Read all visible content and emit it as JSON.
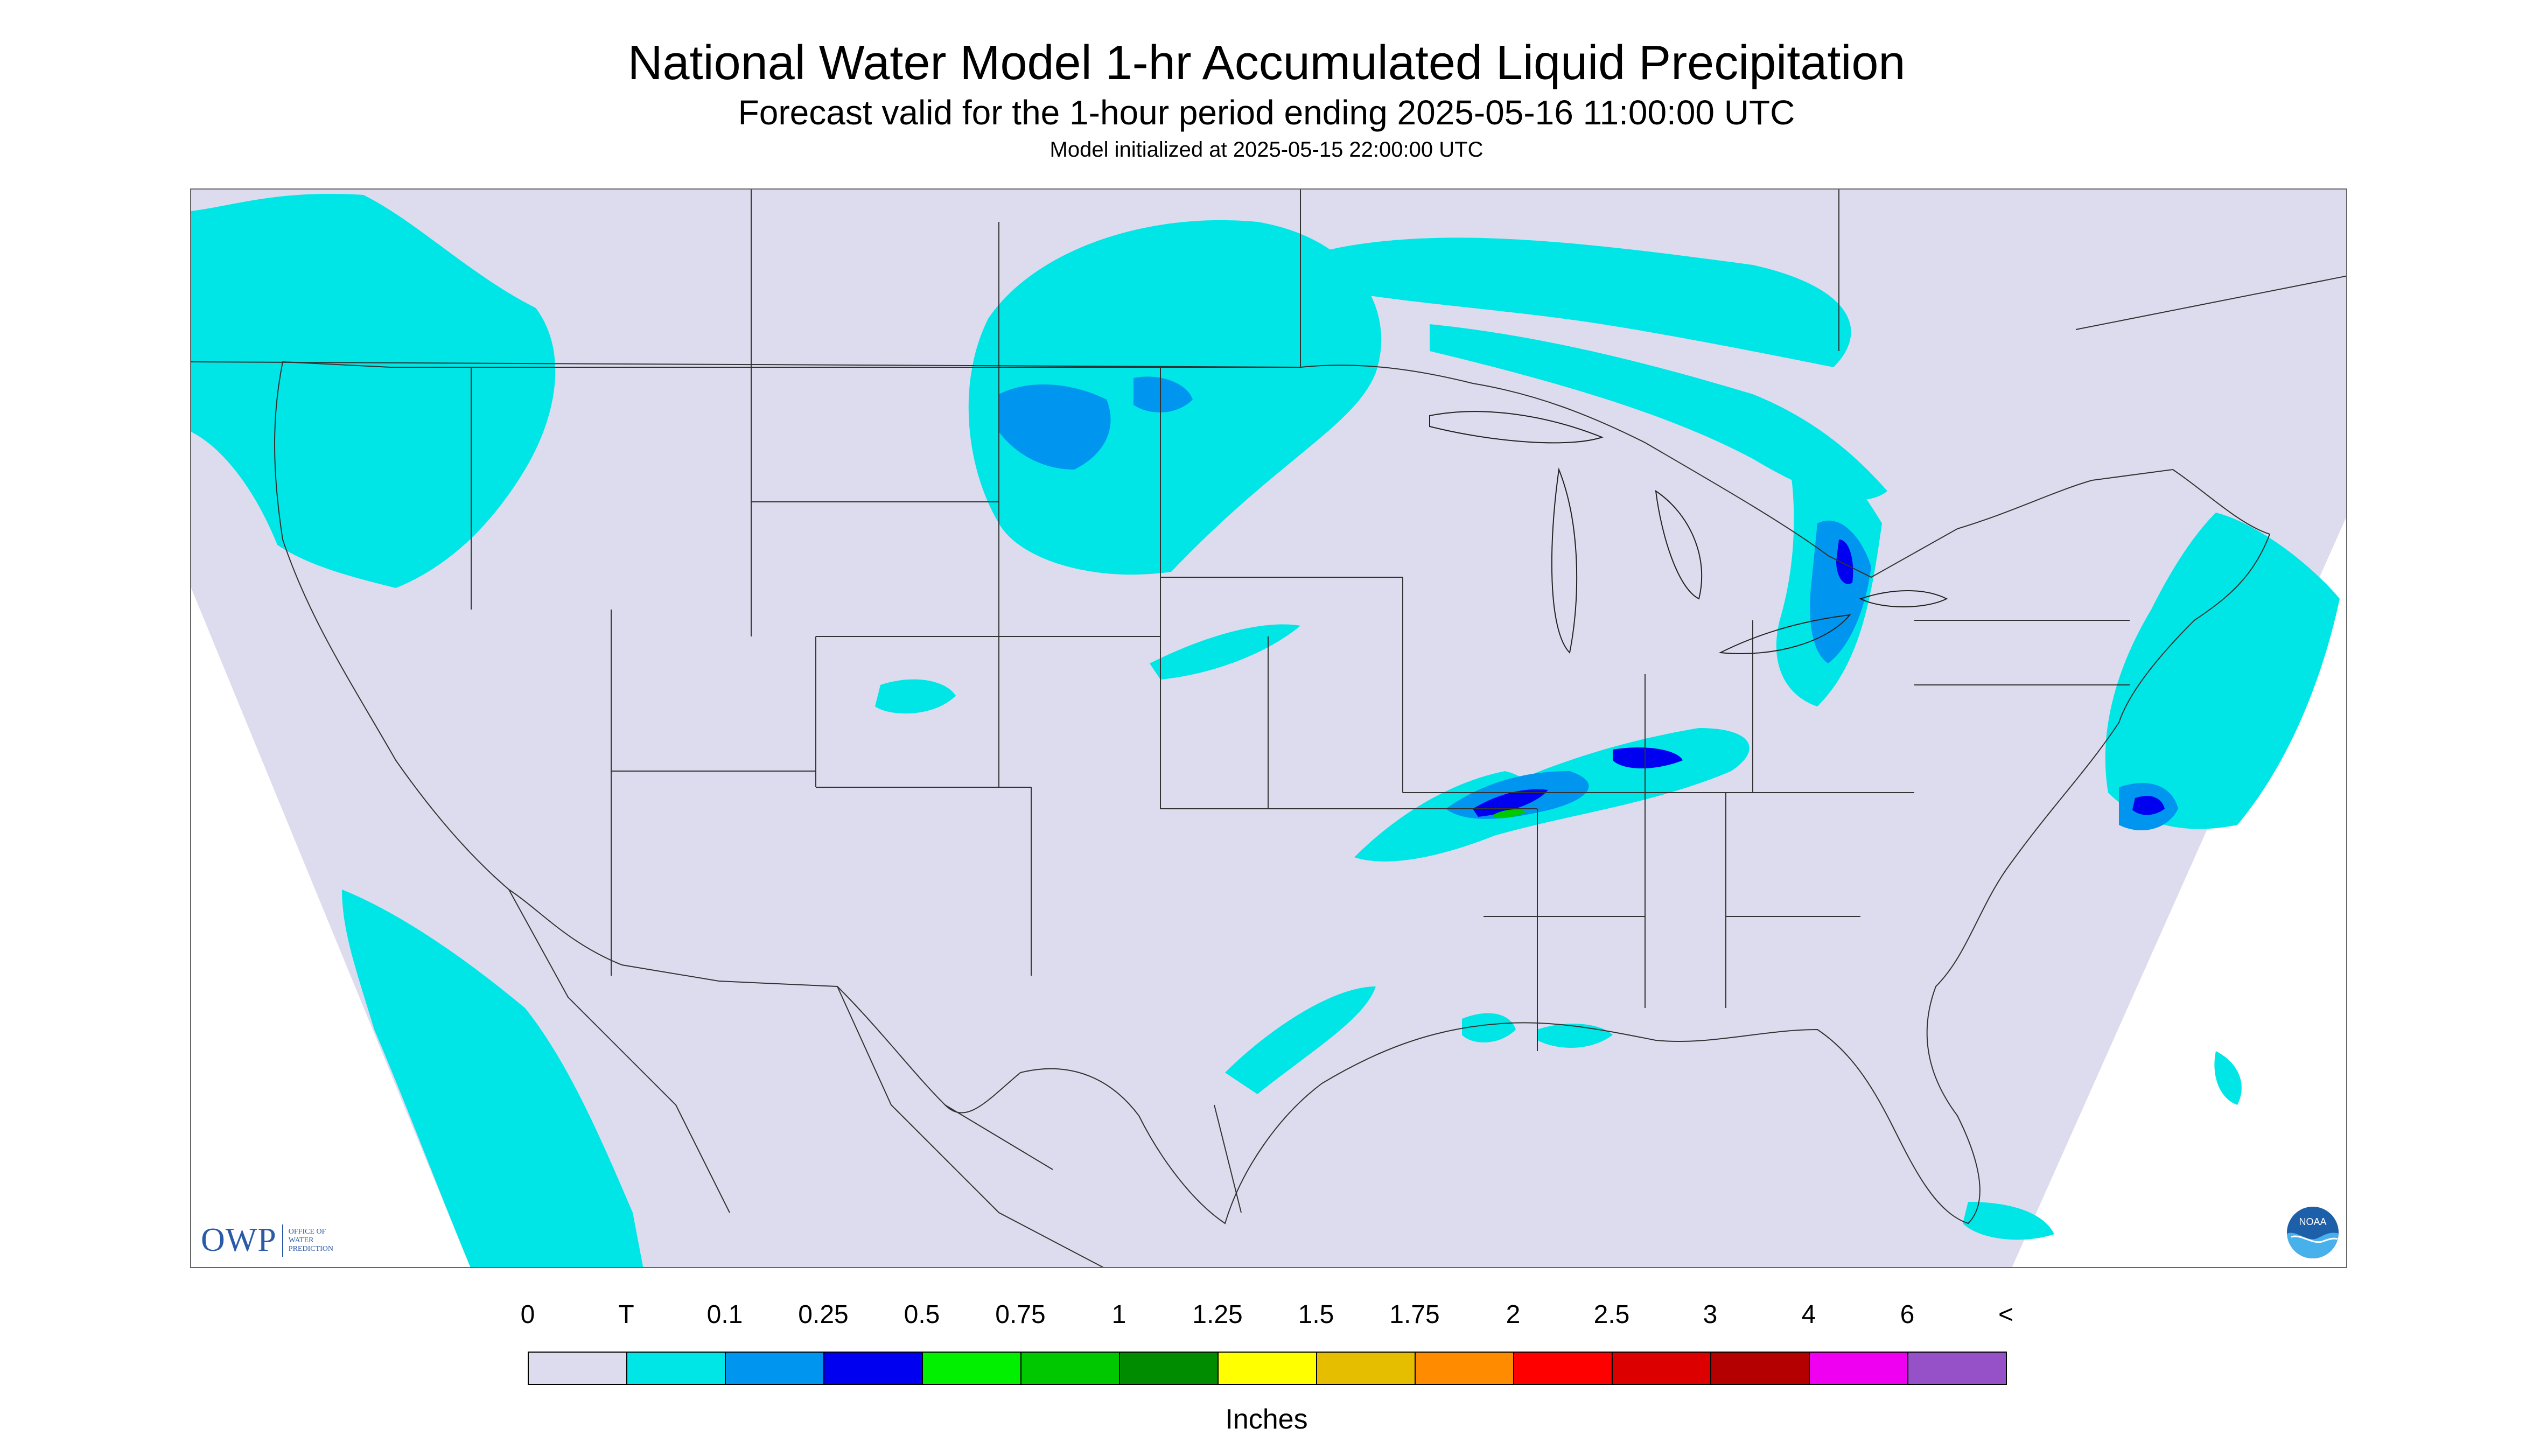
{
  "header": {
    "title": "National Water Model 1-hr Accumulated Liquid Precipitation",
    "subtitle": "Forecast valid for the 1-hour period ending 2025-05-16 11:00:00 UTC",
    "init": "Model initialized at 2025-05-15 22:00:00 UTC"
  },
  "map": {
    "background_color": "#dcdcee",
    "outside_color": "#ffffff",
    "border_color": "#000000",
    "region": "CONUS",
    "logo_left": {
      "icon": "owp-logo",
      "text": "OWP",
      "subtext": [
        "OFFICE OF",
        "WATER",
        "PREDICTION"
      ]
    },
    "logo_right": {
      "icon": "noaa-logo",
      "text": "NOAA"
    }
  },
  "legend": {
    "units": "Inches",
    "labels": [
      "0",
      "T",
      "0.1",
      "0.25",
      "0.5",
      "0.75",
      "1",
      "1.25",
      "1.5",
      "1.75",
      "2",
      "2.5",
      "3",
      "4",
      "6",
      "<"
    ],
    "colors": [
      "#dcdcee",
      "#00e6e6",
      "#0096f0",
      "#0000f0",
      "#00f000",
      "#00c800",
      "#008c00",
      "#ffff00",
      "#e6be00",
      "#ff8c00",
      "#ff0000",
      "#dc0000",
      "#b40000",
      "#f000f0",
      "#9650c8"
    ]
  },
  "precipitation_areas": [
    {
      "region": "Northwest",
      "category": "T"
    },
    {
      "region": "Northern Plains",
      "category": "T"
    },
    {
      "region": "Northern Plains core",
      "category": "0.1"
    },
    {
      "region": "Upper Great Lakes / Ontario",
      "category": "T"
    },
    {
      "region": "Lake Huron / Lake Erie corridor",
      "category": "0.25"
    },
    {
      "region": "Tennessee Valley",
      "category": "0.5"
    },
    {
      "region": "Mid-South",
      "category": "0.25"
    },
    {
      "region": "Northeast / New England",
      "category": "T"
    },
    {
      "region": "Atlantic offshore",
      "category": "0.5"
    },
    {
      "region": "Gulf Coast",
      "category": "T"
    },
    {
      "region": "Southwest / Baja Pacific",
      "category": "T"
    }
  ]
}
